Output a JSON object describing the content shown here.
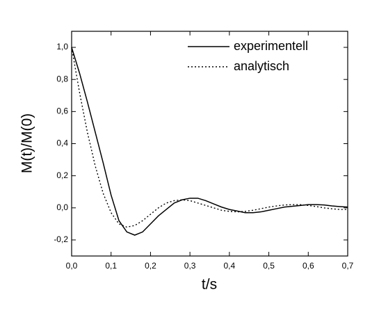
{
  "chart_data": {
    "type": "line",
    "x_label": "t/s",
    "y_label": "M(t)/M(0)",
    "x": [
      0,
      0.02,
      0.04,
      0.06,
      0.08,
      0.1,
      0.12,
      0.14,
      0.16,
      0.18,
      0.2,
      0.22,
      0.24,
      0.26,
      0.28,
      0.3,
      0.32,
      0.34,
      0.36,
      0.38,
      0.4,
      0.42,
      0.44,
      0.46,
      0.48,
      0.5,
      0.52,
      0.54,
      0.56,
      0.58,
      0.6,
      0.62,
      0.64,
      0.66,
      0.68,
      0.7
    ],
    "series": [
      {
        "name": "experimentell",
        "color": "#000000",
        "style": "solid",
        "values": [
          1.0,
          0.84,
          0.66,
          0.47,
          0.28,
          0.08,
          -0.08,
          -0.15,
          -0.17,
          -0.15,
          -0.1,
          -0.05,
          -0.01,
          0.03,
          0.05,
          0.06,
          0.06,
          0.045,
          0.025,
          0.005,
          -0.01,
          -0.02,
          -0.03,
          -0.03,
          -0.025,
          -0.015,
          -0.005,
          0.005,
          0.01,
          0.015,
          0.02,
          0.02,
          0.018,
          0.012,
          0.008,
          0.005
        ]
      },
      {
        "name": "analytisch",
        "color": "#000000",
        "style": "dotted",
        "values": [
          1.0,
          0.72,
          0.47,
          0.26,
          0.09,
          -0.03,
          -0.1,
          -0.12,
          -0.11,
          -0.08,
          -0.04,
          0.0,
          0.03,
          0.045,
          0.05,
          0.045,
          0.03,
          0.015,
          0.0,
          -0.015,
          -0.022,
          -0.025,
          -0.022,
          -0.015,
          -0.005,
          0.005,
          0.012,
          0.018,
          0.02,
          0.02,
          0.015,
          0.008,
          0.0,
          -0.006,
          -0.01,
          -0.01
        ]
      }
    ],
    "xlim": [
      0,
      0.7
    ],
    "xticks": [
      {
        "value": 0,
        "label": "0,0"
      },
      {
        "value": 0.1,
        "label": "0,1"
      },
      {
        "value": 0.2,
        "label": "0,2"
      },
      {
        "value": 0.3,
        "label": "0,3"
      },
      {
        "value": 0.4,
        "label": "0,4"
      },
      {
        "value": 0.5,
        "label": "0,5"
      },
      {
        "value": 0.6,
        "label": "0,6"
      },
      {
        "value": 0.7,
        "label": "0,7"
      }
    ],
    "ylim": [
      -0.3,
      1.1
    ],
    "yticks": [
      {
        "value": -0.2,
        "label": "-0,2"
      },
      {
        "value": 0,
        "label": "0,0"
      },
      {
        "value": 0.2,
        "label": "0,2"
      },
      {
        "value": 0.4,
        "label": "0,4"
      },
      {
        "value": 0.6,
        "label": "0,6"
      },
      {
        "value": 0.8,
        "label": "0,8"
      },
      {
        "value": 1.0,
        "label": "1,0"
      }
    ],
    "legend": "top-right"
  }
}
